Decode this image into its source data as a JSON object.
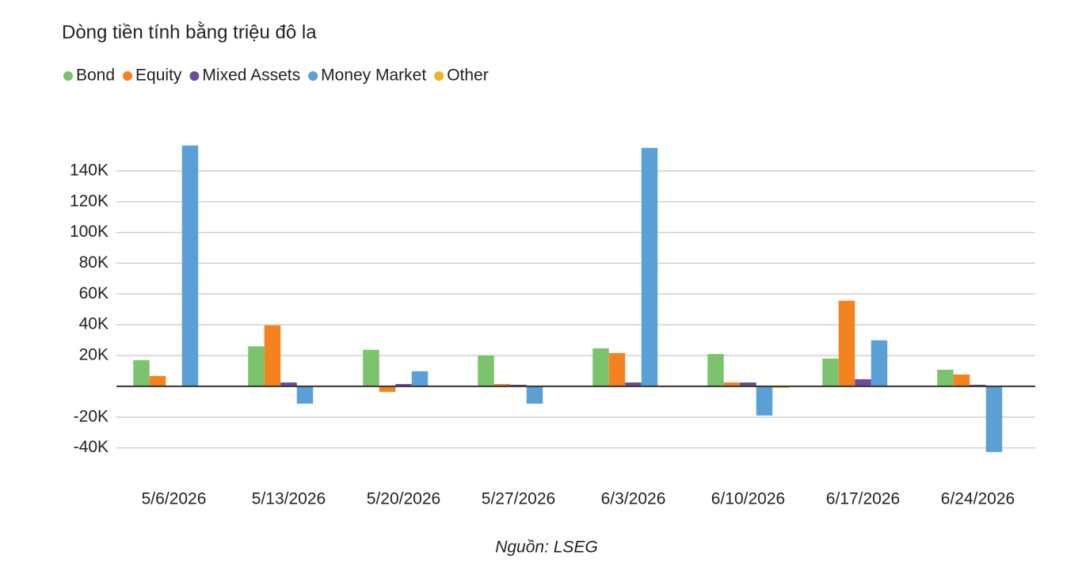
{
  "chart_data": {
    "type": "bar",
    "title": "Dòng tiền tính bằng triệu đô la",
    "source": "Nguồn: LSEG",
    "categories": [
      "5/6/2026",
      "5/13/2026",
      "5/20/2026",
      "5/27/2026",
      "6/3/2026",
      "6/10/2026",
      "6/17/2026",
      "6/24/2026"
    ],
    "series": [
      {
        "name": "Bond",
        "color": "#7cc36d",
        "values": [
          17000,
          26000,
          23700,
          20000,
          24700,
          21000,
          18000,
          10800
        ]
      },
      {
        "name": "Equity",
        "color": "#f5821f",
        "values": [
          6700,
          39600,
          -3600,
          1500,
          21600,
          2500,
          55600,
          7700
        ]
      },
      {
        "name": "Mixed Assets",
        "color": "#6a4c9c",
        "values": [
          0,
          2500,
          1500,
          1000,
          2500,
          2500,
          4600,
          1000
        ]
      },
      {
        "name": "Money Market",
        "color": "#5aa0d6",
        "values": [
          156500,
          -11300,
          9800,
          -11300,
          155000,
          -19000,
          29900,
          -42700
        ]
      },
      {
        "name": "Other",
        "color": "#e8b823",
        "values": [
          0,
          0,
          0,
          0,
          0,
          -1000,
          0,
          0
        ]
      }
    ],
    "ylim": [
      -50000,
      160000
    ],
    "yticks": [
      {
        "value": -40000,
        "label": "-40K"
      },
      {
        "value": -20000,
        "label": "-20K"
      },
      {
        "value": 20000,
        "label": "20K"
      },
      {
        "value": 40000,
        "label": "40K"
      },
      {
        "value": 60000,
        "label": "60K"
      },
      {
        "value": 80000,
        "label": "80K"
      },
      {
        "value": 100000,
        "label": "100K"
      },
      {
        "value": 120000,
        "label": "120K"
      },
      {
        "value": 140000,
        "label": "140K"
      }
    ],
    "grid": true
  }
}
